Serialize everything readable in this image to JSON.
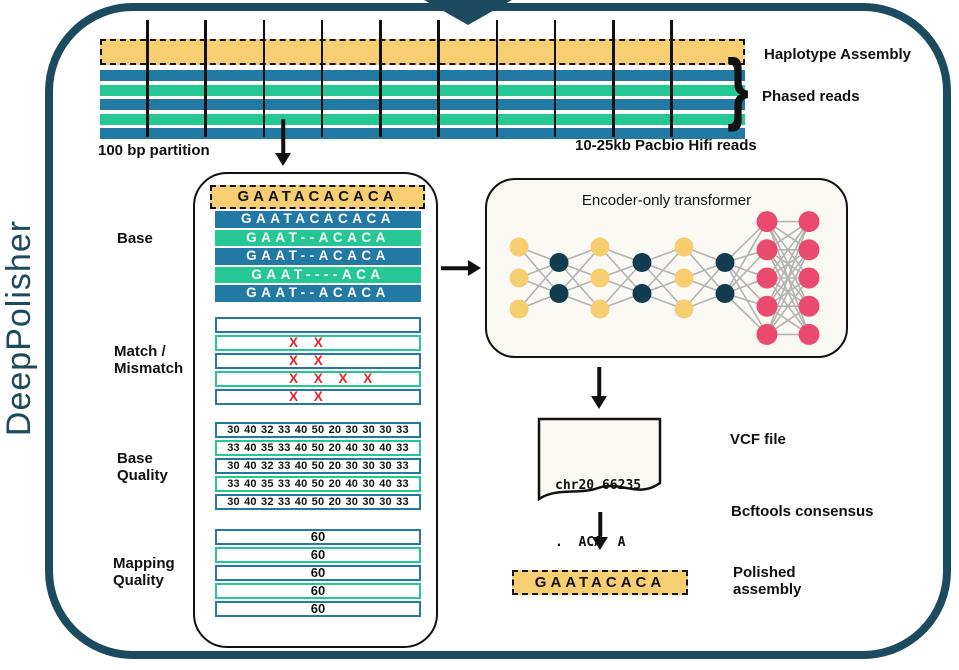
{
  "title": "DeepPolisher",
  "palette": {
    "frame_teal": "#1c4b60",
    "read_blue": "#2279a3",
    "read_green": "#25c795",
    "assembly_yellow": "#f8ce72",
    "mismatch_red": "#e8232a",
    "node_yellow": "#f6cd6f",
    "node_navy": "#123c50",
    "node_pink": "#e94a6e",
    "edge_gray": "#b3b3b3"
  },
  "top": {
    "haplotype_label": "Haplotype Assembly",
    "phased_label": "Phased reads",
    "brace_glyph": "}",
    "partition_label": "100 bp partition",
    "reads_label": "10-25kb Pacbio Hifi reads"
  },
  "pileup": {
    "reference": "GAATACACACA",
    "reads": [
      {
        "seq": "GAATACACACA"
      },
      {
        "seq": "GAAT--ACACA"
      },
      {
        "seq": "GAAT--ACACA"
      },
      {
        "seq": "GAAT----ACA"
      },
      {
        "seq": "GAAT--ACACA"
      }
    ],
    "labels": {
      "base": "Base",
      "match_line1": "Match /",
      "match_line2": "Mismatch",
      "base_quality_line1": "Base",
      "base_quality_line2": "Quality",
      "mapping_quality_line1": "Mapping",
      "mapping_quality_line2": "Quality"
    },
    "mismatch_rows": [
      "",
      "X X",
      "X X",
      "X X X X",
      "X X"
    ],
    "base_quality_rows": [
      "30 40 32 33 40 50 20 30 30 30 33",
      "33 40 35 33 40 50 20 40 30 40 33",
      "30 40 32 33 40 50 20 30 30 30 33",
      "33 40 35 33 40 50 20 40 30 40 33",
      "30 40 32 33 40 50 20 30 30 30 33"
    ],
    "mapping_quality_rows": [
      "60",
      "60",
      "60",
      "60",
      "60"
    ]
  },
  "transformer": {
    "title": "Encoder-only transformer",
    "network": {
      "layers": [
        {
          "n": 3,
          "color": "#f6cd6f"
        },
        {
          "n": 2,
          "color": "#123c50"
        },
        {
          "n": 3,
          "color": "#f6cd6f"
        },
        {
          "n": 2,
          "color": "#123c50"
        },
        {
          "n": 3,
          "color": "#f6cd6f"
        },
        {
          "n": 2,
          "color": "#123c50"
        },
        {
          "n": 5,
          "color": "#e94a6e"
        },
        {
          "n": 5,
          "color": "#e94a6e"
        }
      ]
    }
  },
  "output": {
    "vcf_line1": "chr20 66235",
    "vcf_line2": ".  ACA  A",
    "vcf_label": "VCF file",
    "bcftools_label": "Bcftools consensus",
    "polished_seq": "GAATACACA",
    "polished_label_line1": "Polished",
    "polished_label_line2": "assembly"
  }
}
